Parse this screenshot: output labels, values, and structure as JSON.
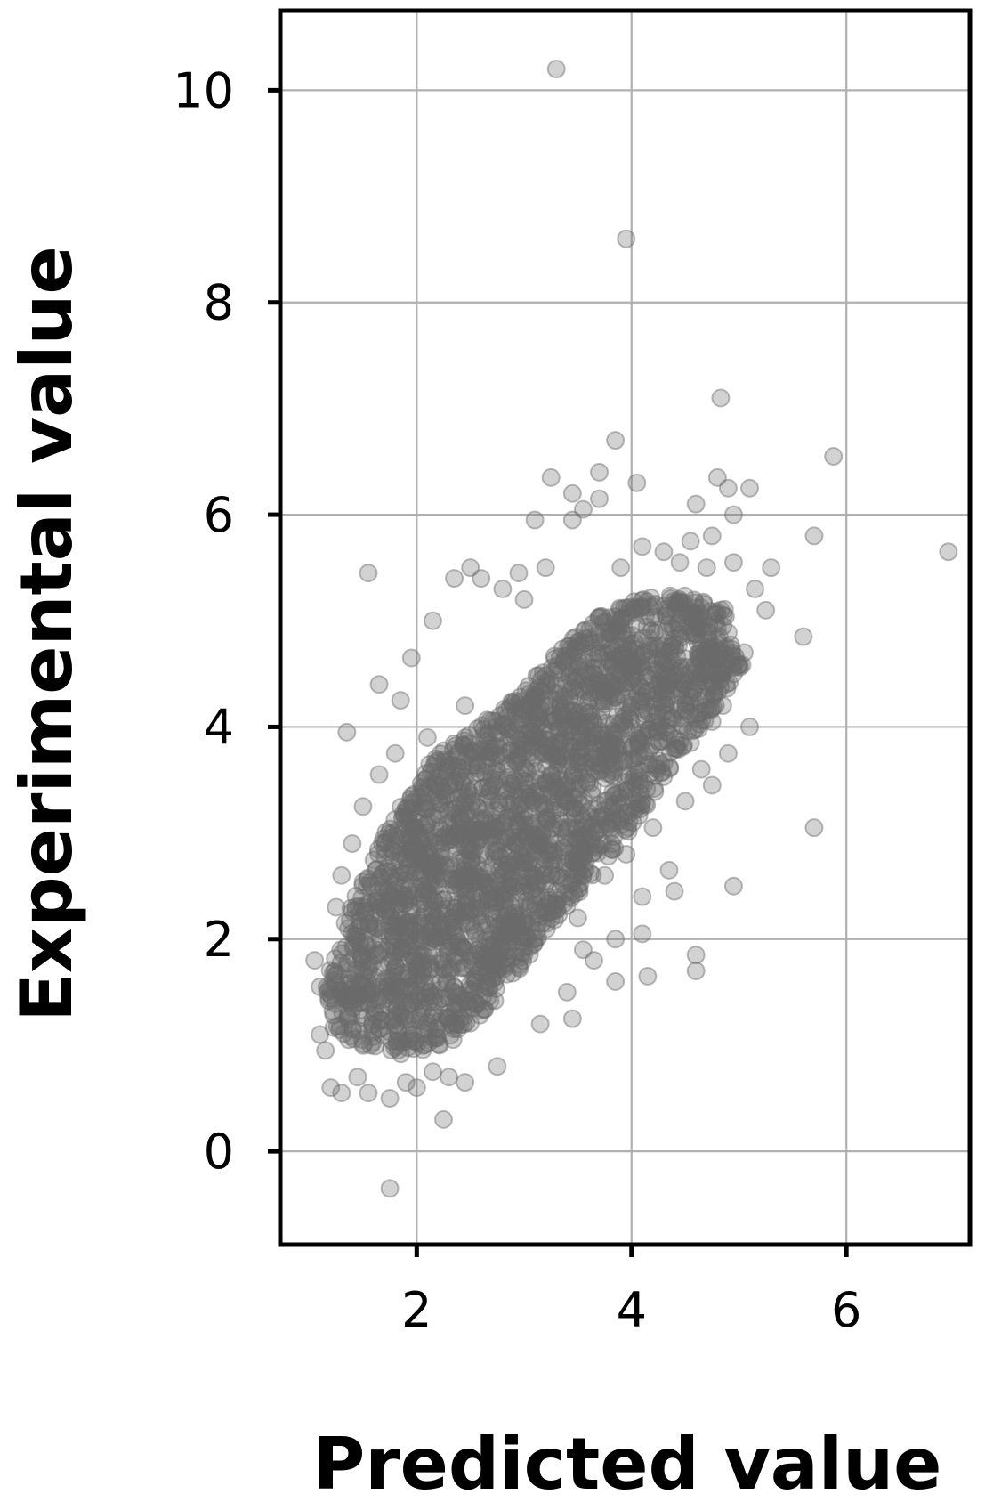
{
  "chart_data": {
    "type": "scatter",
    "title": "",
    "xlabel": "Predicted value",
    "ylabel": "Experimental value",
    "xlim": [
      0.73,
      7.15
    ],
    "ylim": [
      -0.88,
      10.75
    ],
    "x_ticks": [
      2,
      4,
      6
    ],
    "y_ticks": [
      0,
      2,
      4,
      6,
      8,
      10
    ],
    "x_tick_labels": [
      "2",
      "4",
      "6"
    ],
    "y_tick_labels": [
      "0",
      "2",
      "4",
      "6",
      "8",
      "10"
    ],
    "grid": true,
    "legend": "none",
    "marker_color": "#6b6b6b",
    "marker_alpha": 0.3,
    "point_count_note_free": true,
    "series": [
      {
        "points": [
          [
            3.3,
            10.2
          ],
          [
            3.95,
            8.6
          ],
          [
            4.83,
            7.1
          ],
          [
            5.88,
            6.55
          ],
          [
            6.95,
            5.65
          ],
          [
            3.85,
            6.7
          ],
          [
            3.25,
            6.35
          ],
          [
            3.7,
            6.4
          ],
          [
            4.05,
            6.3
          ],
          [
            3.45,
            6.2
          ],
          [
            3.7,
            6.15
          ],
          [
            3.55,
            6.05
          ],
          [
            3.45,
            5.95
          ],
          [
            3.1,
            5.95
          ],
          [
            5.7,
            5.8
          ],
          [
            4.8,
            6.35
          ],
          [
            4.95,
            6.0
          ],
          [
            5.1,
            6.25
          ],
          [
            4.9,
            6.25
          ],
          [
            4.6,
            6.1
          ],
          [
            5.3,
            5.5
          ],
          [
            5.6,
            4.85
          ],
          [
            4.95,
            4.5
          ],
          [
            5.05,
            4.7
          ],
          [
            5.1,
            4.0
          ],
          [
            4.85,
            4.2
          ],
          [
            4.75,
            3.45
          ],
          [
            4.9,
            3.75
          ],
          [
            5.7,
            3.05
          ],
          [
            4.95,
            2.5
          ],
          [
            4.6,
            1.85
          ],
          [
            4.6,
            1.7
          ],
          [
            4.15,
            1.65
          ],
          [
            3.85,
            1.6
          ],
          [
            4.1,
            2.05
          ],
          [
            3.85,
            2.0
          ],
          [
            4.1,
            2.4
          ],
          [
            4.35,
            2.65
          ],
          [
            4.4,
            2.45
          ],
          [
            3.65,
            1.8
          ],
          [
            3.4,
            1.5
          ],
          [
            3.45,
            1.25
          ],
          [
            3.15,
            1.2
          ],
          [
            3.55,
            1.9
          ],
          [
            2.75,
            0.8
          ],
          [
            2.25,
            0.3
          ],
          [
            1.75,
            -0.35
          ],
          [
            1.55,
            5.45
          ],
          [
            1.35,
            3.95
          ],
          [
            1.65,
            4.4
          ],
          [
            1.95,
            4.65
          ],
          [
            1.85,
            4.25
          ],
          [
            2.15,
            5.0
          ],
          [
            2.35,
            5.4
          ],
          [
            2.5,
            5.5
          ],
          [
            2.6,
            5.4
          ],
          [
            2.8,
            5.3
          ],
          [
            3.0,
            5.2
          ],
          [
            2.95,
            5.45
          ],
          [
            3.2,
            5.5
          ],
          [
            3.9,
            5.5
          ],
          [
            4.1,
            5.7
          ],
          [
            4.3,
            5.65
          ],
          [
            4.45,
            5.55
          ],
          [
            4.55,
            5.75
          ],
          [
            4.7,
            5.5
          ],
          [
            4.75,
            5.8
          ],
          [
            4.95,
            5.55
          ],
          [
            5.15,
            5.3
          ],
          [
            5.25,
            5.1
          ],
          [
            1.05,
            1.8
          ],
          [
            1.1,
            1.55
          ],
          [
            1.1,
            1.1
          ],
          [
            1.15,
            0.95
          ],
          [
            1.2,
            0.6
          ],
          [
            1.3,
            0.55
          ],
          [
            1.45,
            0.7
          ],
          [
            1.55,
            0.55
          ],
          [
            1.75,
            0.5
          ],
          [
            1.9,
            0.65
          ],
          [
            2.0,
            0.6
          ],
          [
            2.15,
            0.75
          ],
          [
            2.3,
            0.7
          ],
          [
            2.45,
            0.65
          ],
          [
            1.25,
            2.3
          ],
          [
            1.3,
            2.6
          ],
          [
            1.4,
            2.9
          ],
          [
            1.5,
            3.25
          ],
          [
            1.65,
            3.55
          ],
          [
            1.8,
            3.75
          ],
          [
            2.1,
            3.9
          ],
          [
            2.45,
            4.2
          ],
          [
            3.75,
            2.6
          ],
          [
            3.95,
            2.8
          ],
          [
            4.2,
            3.05
          ],
          [
            4.5,
            3.3
          ],
          [
            4.65,
            3.6
          ],
          [
            4.55,
            3.85
          ],
          [
            4.75,
            4.05
          ],
          [
            3.5,
            2.2
          ]
        ]
      }
    ],
    "density_regions": [
      {
        "x": [
          1.15,
          1.4,
          1.75,
          2.15,
          2.55,
          2.95,
          3.35,
          3.7,
          4.05,
          4.45,
          4.9,
          5.05,
          4.85,
          4.4,
          4.0,
          3.6,
          3.2,
          2.8,
          2.45,
          2.1,
          1.75,
          1.45,
          1.2
        ],
        "y": [
          1.6,
          2.35,
          3.1,
          3.7,
          4.0,
          4.3,
          4.75,
          5.05,
          5.2,
          5.25,
          5.1,
          4.6,
          4.25,
          3.65,
          3.05,
          2.55,
          2.05,
          1.5,
          1.1,
          0.95,
          0.9,
          1.0,
          1.15
        ]
      }
    ]
  }
}
